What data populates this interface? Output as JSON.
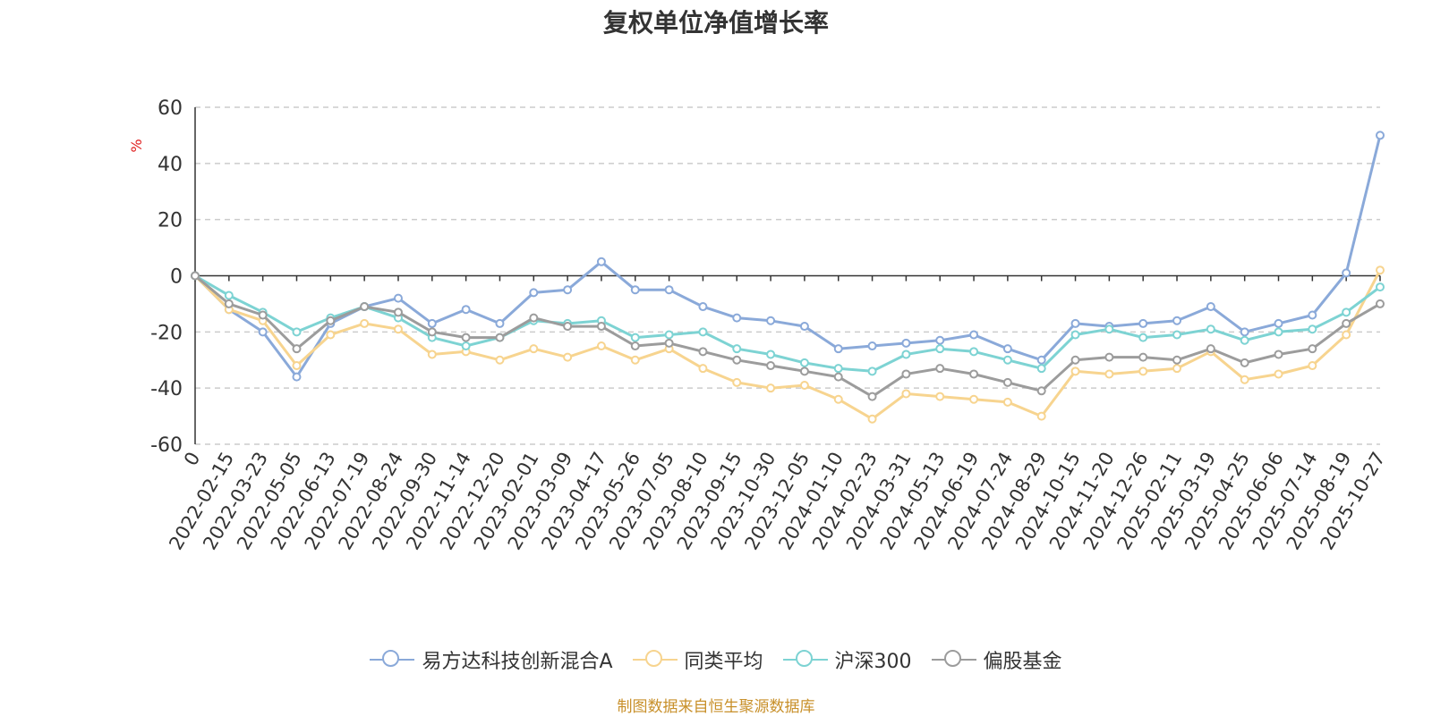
{
  "chart_data": {
    "type": "line",
    "title": "复权单位净值增长率",
    "ylabel": "%",
    "xlabel": "",
    "ylim": [
      -60,
      60
    ],
    "yticks": [
      60,
      40,
      20,
      0,
      -20,
      -40,
      -60
    ],
    "grid": true,
    "legend_position": "bottom",
    "x": [
      "0",
      "2022-02-15",
      "2022-03-23",
      "2022-05-05",
      "2022-06-13",
      "2022-07-19",
      "2022-08-24",
      "2022-09-30",
      "2022-11-14",
      "2022-12-20",
      "2023-02-01",
      "2023-03-09",
      "2023-04-17",
      "2023-05-26",
      "2023-07-05",
      "2023-08-10",
      "2023-09-15",
      "2023-10-30",
      "2023-12-05",
      "2024-01-10",
      "2024-02-23",
      "2024-03-31",
      "2024-05-13",
      "2024-06-19",
      "2024-07-24",
      "2024-08-29",
      "2024-10-15",
      "2024-11-20",
      "2024-12-26",
      "2025-02-11",
      "2025-03-19",
      "2025-04-25",
      "2025-06-06",
      "2025-07-14",
      "2025-08-19",
      "2025-10-27"
    ],
    "series": [
      {
        "name": "易方达科技创新混合A",
        "color": "#8aa9d9",
        "values": [
          0,
          -12,
          -20,
          -36,
          -17,
          -11,
          -8,
          -17,
          -12,
          -17,
          -6,
          -5,
          5,
          -5,
          -5,
          -11,
          -15,
          -16,
          -18,
          -26,
          -25,
          -24,
          -23,
          -21,
          -26,
          -30,
          -17,
          -18,
          -17,
          -16,
          -11,
          -20,
          -17,
          -14,
          1,
          50
        ]
      },
      {
        "name": "同类平均",
        "color": "#f7d48f",
        "values": [
          0,
          -12,
          -16,
          -32,
          -21,
          -17,
          -19,
          -28,
          -27,
          -30,
          -26,
          -29,
          -25,
          -30,
          -26,
          -33,
          -38,
          -40,
          -39,
          -44,
          -51,
          -42,
          -43,
          -44,
          -45,
          -50,
          -34,
          -35,
          -34,
          -33,
          -27,
          -37,
          -35,
          -32,
          -21,
          2
        ]
      },
      {
        "name": "沪深300",
        "color": "#7dd3d3",
        "values": [
          0,
          -7,
          -13,
          -20,
          -15,
          -11,
          -15,
          -22,
          -25,
          -22,
          -16,
          -17,
          -16,
          -22,
          -21,
          -20,
          -26,
          -28,
          -31,
          -33,
          -34,
          -28,
          -26,
          -27,
          -30,
          -33,
          -21,
          -19,
          -22,
          -21,
          -19,
          -23,
          -20,
          -19,
          -13,
          -4
        ]
      },
      {
        "name": "偏股基金",
        "color": "#9c9c9c",
        "values": [
          0,
          -10,
          -14,
          -26,
          -16,
          -11,
          -13,
          -20,
          -22,
          -22,
          -15,
          -18,
          -18,
          -25,
          -24,
          -27,
          -30,
          -32,
          -34,
          -36,
          -43,
          -35,
          -33,
          -35,
          -38,
          -41,
          -30,
          -29,
          -29,
          -30,
          -26,
          -31,
          -28,
          -26,
          -17,
          -10
        ]
      }
    ]
  },
  "source_note": "制图数据来自恒生聚源数据库"
}
